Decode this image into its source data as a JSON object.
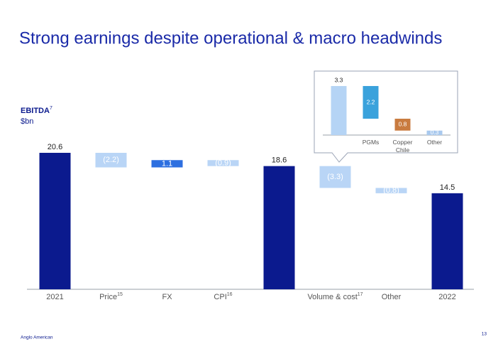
{
  "title": "Strong earnings despite operational & macro headwinds",
  "footer": "Anglo American",
  "page_number": "13",
  "chart_data": [
    {
      "type": "waterfall",
      "y_label": "EBITDA",
      "y_label_note": "7",
      "unit": "$bn",
      "categories": [
        "2021",
        "Price",
        "FX",
        "CPI",
        null,
        "Volume & cost",
        "Other",
        "2022"
      ],
      "category_notes": [
        null,
        "15",
        null,
        "16",
        null,
        "17",
        null,
        null
      ],
      "measure": [
        "total",
        "relative",
        "relative",
        "relative",
        "total",
        "relative",
        "relative",
        "total"
      ],
      "values": [
        20.6,
        -2.2,
        1.1,
        -0.9,
        18.6,
        -3.3,
        -0.8,
        14.5
      ],
      "value_labels": [
        "20.6",
        "(2.2)",
        "1.1",
        "(0.9)",
        "18.6",
        "(3.3)",
        "(0.8)",
        "14.5"
      ],
      "colors": {
        "total": "#0b1a8e",
        "increase": "#2d6fe0",
        "decrease": "#b9d5f6"
      }
    },
    {
      "type": "waterfall",
      "categories": [
        null,
        "PGMs",
        "Copper Chile",
        "Other"
      ],
      "measure": [
        "total",
        "relative",
        "relative",
        "relative"
      ],
      "values": [
        3.3,
        -2.2,
        -0.8,
        -0.3
      ],
      "value_labels": [
        "3.3",
        "2.2",
        "0.8",
        "0.3"
      ],
      "bar_colors": [
        "#b5d4f5",
        "#3aa2dc",
        "#c97b3f",
        "#a9c9ee"
      ]
    }
  ]
}
